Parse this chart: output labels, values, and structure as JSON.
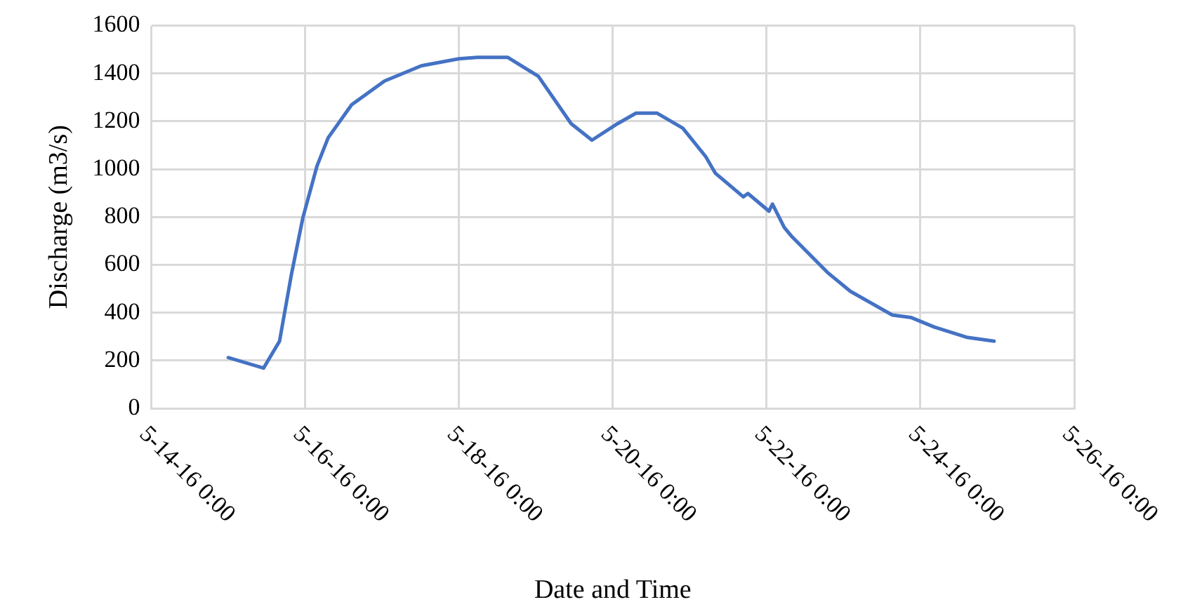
{
  "chart_data": {
    "type": "line",
    "xlabel": "Date and Time",
    "ylabel": "Discharge (m3/s)",
    "xlim": [
      "--05-14T00:00",
      "--05-26T00:00"
    ],
    "xticks": [
      {
        "value": "--05-14T00:00",
        "label": "5-14-16 0:00"
      },
      {
        "value": "--05-16T00:00",
        "label": "5-16-16 0:00"
      },
      {
        "value": "--05-18T00:00",
        "label": "5-18-16 0:00"
      },
      {
        "value": "--05-20T00:00",
        "label": "5-20-16 0:00"
      },
      {
        "value": "--05-22T00:00",
        "label": "5-22-16 0:00"
      },
      {
        "value": "--05-24T00:00",
        "label": "5-24-16 0:00"
      },
      {
        "value": "--05-26T00:00",
        "label": "5-26-16 0:00"
      }
    ],
    "ylim": [
      0,
      1600
    ],
    "yticks": [
      0,
      200,
      400,
      600,
      800,
      1000,
      1200,
      1400,
      1600
    ],
    "grid": true,
    "legend": false,
    "marker": "none",
    "line_style": "solid",
    "x": [
      "--05-15T00:00",
      "--05-15T11:00",
      "--05-15T16:00",
      "--05-15T19:40",
      "--05-15T23:15",
      "--05-16T03:40",
      "--05-16T07:10",
      "--05-16T14:30",
      "--05-17T00:45",
      "--05-17T12:15",
      "--05-18T00:00",
      "--05-18T05:45",
      "--05-18T15:15",
      "--05-19T00:45",
      "--05-19T11:00",
      "--05-19T17:30",
      "--05-20T01:30",
      "--05-20T07:15",
      "--05-20T13:45",
      "--05-20T21:50",
      "--05-21T05:00",
      "--05-21T08:00",
      "--05-21T16:45",
      "--05-21T18:10",
      "--05-22T00:45",
      "--05-22T01:50",
      "--05-22T05:30",
      "--05-22T08:00",
      "--05-22T19:00",
      "--05-23T02:10",
      "--05-23T15:15",
      "--05-23T21:00",
      "--05-24T04:20",
      "--05-24T14:25",
      "--05-24T23:00"
    ],
    "series": [
      {
        "color": "#4472c4",
        "values": [
          212,
          168,
          281,
          557,
          795,
          1012,
          1131,
          1269,
          1368,
          1432,
          1461,
          1467,
          1467,
          1388,
          1190,
          1121,
          1190,
          1234,
          1234,
          1171,
          1052,
          983,
          884,
          898,
          824,
          854,
          756,
          716,
          568,
          489,
          390,
          380,
          340,
          297,
          281
        ]
      }
    ]
  }
}
